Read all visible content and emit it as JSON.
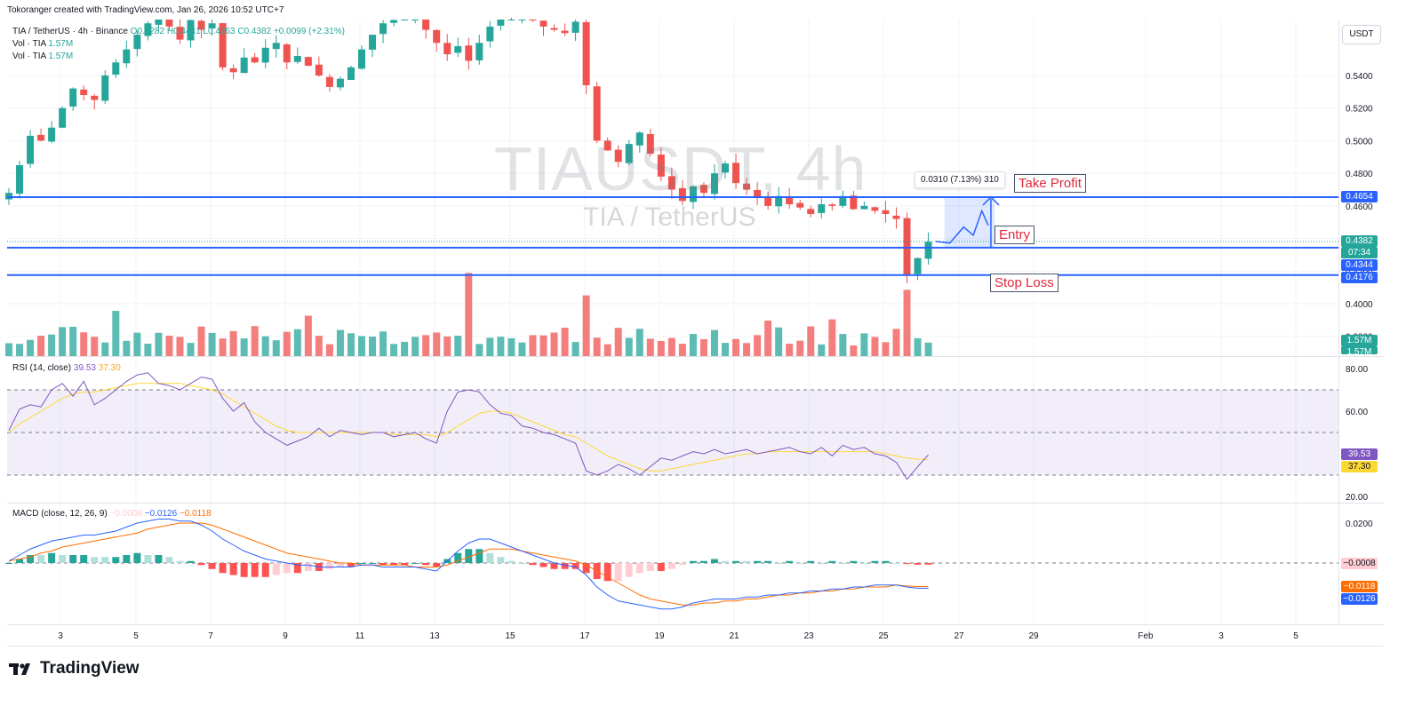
{
  "header": {
    "attribution": "Tokoranger created with TradingView.com, Jan 26, 2026 10:52 UTC+7"
  },
  "legend": {
    "symbol": "TIA / TetherUS · 4h · Binance",
    "open": "O0.4282",
    "high": "H0.4441",
    "low": "L0.4263",
    "close": "C0.4382",
    "change": "+0.0099 (+2.31%)",
    "vol1": "Vol · TIA",
    "vol1_val": "1.57M",
    "vol2": "Vol · TIA",
    "vol2_val": "1.57M"
  },
  "watermark": {
    "ticker": "TIAUSDT, 4h",
    "name": "TIA / TetherUS"
  },
  "currency_button": "USDT",
  "annotations": {
    "take_profit": "Take Profit",
    "entry": "Entry",
    "stop_loss": "Stop Loss",
    "measure": "0.0310 (7.13%) 310"
  },
  "price_tags": {
    "take_profit": "0.4654",
    "last_price": "0.4382",
    "countdown": "07:34",
    "entry": "0.4344",
    "stop_loss": "0.4176",
    "volume1": "1.57M",
    "volume2": "1.57M",
    "rsi": "39.53",
    "rsi_ma": "37.30",
    "macd_hist": "−0.0008",
    "macd_signal": "−0.0118",
    "macd_line": "−0.0126"
  },
  "colors": {
    "up": "#26a69a",
    "down": "#ef5350",
    "level_line": "#2962ff",
    "rsi": "#7e57c2",
    "rsi_ma": "#fdd835",
    "macd": "#2962ff",
    "signal": "#ff6d00",
    "hist_pos_strong": "#26a69a",
    "hist_pos_weak": "#b2dfdb",
    "hist_neg_strong": "#ff5252",
    "hist_neg_weak": "#ffcdd2"
  },
  "rsi": {
    "title": "RSI (14, close)",
    "value": "39.53",
    "ma_value": "37.30"
  },
  "macd": {
    "title": "MACD (close, 12, 26, 9)",
    "hist": "−0.0008",
    "macd": "−0.0126",
    "signal": "−0.0118"
  },
  "branding": {
    "logo_text": "TradingView",
    "logo_icon": "tradingview-logo-icon"
  },
  "chart_data": [
    {
      "type": "candlestick",
      "title": "TIA / TetherUS · 4h · Binance",
      "y_ticks": [
        "0.5400",
        "0.5200",
        "0.5000",
        "0.4800",
        "0.4600",
        "0.4400",
        "0.4200",
        "0.4000",
        "0.3800"
      ],
      "ylim": [
        0.372,
        0.577
      ],
      "x_ticks": [
        "3",
        "5",
        "7",
        "9",
        "11",
        "13",
        "15",
        "17",
        "19",
        "21",
        "23",
        "25",
        "27",
        "29",
        "Feb",
        "3",
        "5"
      ],
      "levels": {
        "take_profit": 0.4654,
        "entry": 0.4344,
        "stop_loss": 0.4176
      },
      "last_candle": {
        "open": 0.4282,
        "high": 0.4441,
        "low": 0.4263,
        "close": 0.4382,
        "change": 0.0099,
        "change_pct": 2.31
      },
      "close_path": [
        0.468,
        0.485,
        0.503,
        0.5,
        0.508,
        0.52,
        0.532,
        0.528,
        0.525,
        0.54,
        0.548,
        0.556,
        0.565,
        0.572,
        0.577,
        0.57,
        0.562,
        0.574,
        0.568,
        0.572,
        0.545,
        0.542,
        0.551,
        0.548,
        0.557,
        0.56,
        0.548,
        0.552,
        0.546,
        0.54,
        0.533,
        0.538,
        0.545,
        0.556,
        0.565,
        0.572,
        0.574,
        0.576,
        0.577,
        0.568,
        0.56,
        0.553,
        0.558,
        0.549,
        0.56,
        0.57,
        0.575,
        0.576,
        0.577,
        0.574,
        0.57,
        0.568,
        0.566,
        0.573,
        0.534,
        0.5,
        0.494,
        0.487,
        0.498,
        0.505,
        0.492,
        0.478,
        0.47,
        0.463,
        0.472,
        0.468,
        0.48,
        0.486,
        0.474,
        0.47,
        0.465,
        0.46,
        0.466,
        0.461,
        0.459,
        0.455,
        0.461,
        0.46,
        0.466,
        0.458,
        0.46,
        0.457,
        0.455,
        0.452,
        0.418,
        0.428,
        0.438
      ],
      "volume_label": "Vol · TIA 1.57M"
    },
    {
      "type": "line",
      "title": "RSI (14, close)",
      "y_ticks": [
        "80.00",
        "60.00",
        "20.00"
      ],
      "ylim": [
        16,
        84
      ],
      "bands": {
        "upper": 70,
        "middle": 50,
        "lower": 30
      },
      "series": [
        {
          "name": "RSI",
          "values": [
            51,
            61,
            63,
            62,
            70,
            73,
            67,
            74,
            63,
            66,
            70,
            74,
            77,
            78,
            73,
            72,
            70,
            73,
            76,
            75,
            66,
            60,
            64,
            55,
            50,
            47,
            44,
            46,
            48,
            52,
            48,
            51,
            50,
            49,
            50,
            50,
            48,
            49,
            50,
            47,
            45,
            60,
            69,
            70,
            69,
            63,
            59,
            58,
            53,
            52,
            50,
            49,
            47,
            45,
            32,
            30,
            32,
            35,
            33,
            30,
            34,
            38,
            37,
            39,
            41,
            40,
            42,
            40,
            41,
            42,
            40,
            41,
            42,
            43,
            41,
            40,
            43,
            39,
            44,
            42,
            43,
            40,
            39,
            36,
            28,
            34,
            39.53
          ]
        },
        {
          "name": "RSI-based MA",
          "values": [
            50,
            54,
            57,
            60,
            63,
            66,
            68,
            69,
            69,
            70,
            71,
            72,
            73,
            73,
            73,
            73,
            73,
            72,
            71,
            70,
            68,
            65,
            62,
            59,
            56,
            53,
            51,
            50,
            50,
            50,
            50,
            50,
            50,
            50,
            50,
            50,
            49,
            49,
            49,
            49,
            48,
            50,
            53,
            56,
            59,
            60,
            60,
            59,
            57,
            55,
            53,
            51,
            49,
            48,
            45,
            42,
            39,
            37,
            35,
            33,
            32,
            32,
            33,
            34,
            35,
            36,
            37,
            38,
            39,
            40,
            40,
            41,
            41,
            41,
            41,
            41,
            41,
            41,
            41,
            41,
            41,
            41,
            40,
            39,
            38,
            37.5,
            37.3
          ]
        }
      ]
    },
    {
      "type": "line",
      "title": "MACD (close, 12, 26, 9)",
      "y_ticks": [
        "0.0200"
      ],
      "ylim": [
        -0.025,
        0.024
      ],
      "series": [
        {
          "name": "MACD",
          "values": [
            0.001,
            0.004,
            0.007,
            0.009,
            0.011,
            0.012,
            0.013,
            0.014,
            0.014,
            0.015,
            0.016,
            0.018,
            0.02,
            0.021,
            0.022,
            0.022,
            0.021,
            0.021,
            0.019,
            0.016,
            0.012,
            0.009,
            0.006,
            0.004,
            0.002,
            0.001,
            0.0,
            -0.001,
            -0.001,
            -0.002,
            -0.002,
            -0.002,
            -0.002,
            -0.001,
            -0.001,
            -0.002,
            -0.002,
            -0.002,
            -0.002,
            -0.003,
            -0.004,
            0.001,
            0.006,
            0.01,
            0.012,
            0.012,
            0.01,
            0.008,
            0.006,
            0.004,
            0.002,
            0.0,
            -0.001,
            -0.002,
            -0.006,
            -0.012,
            -0.016,
            -0.019,
            -0.02,
            -0.021,
            -0.022,
            -0.023,
            -0.023,
            -0.022,
            -0.02,
            -0.019,
            -0.018,
            -0.018,
            -0.018,
            -0.017,
            -0.017,
            -0.016,
            -0.016,
            -0.015,
            -0.015,
            -0.014,
            -0.014,
            -0.013,
            -0.013,
            -0.012,
            -0.012,
            -0.011,
            -0.011,
            -0.011,
            -0.012,
            -0.0126,
            -0.0126
          ]
        },
        {
          "name": "Signal",
          "values": [
            0.001,
            0.002,
            0.003,
            0.005,
            0.006,
            0.008,
            0.009,
            0.01,
            0.011,
            0.012,
            0.013,
            0.014,
            0.015,
            0.017,
            0.018,
            0.019,
            0.02,
            0.02,
            0.02,
            0.019,
            0.017,
            0.015,
            0.013,
            0.011,
            0.009,
            0.007,
            0.005,
            0.004,
            0.003,
            0.002,
            0.001,
            0.0,
            0.0,
            -0.001,
            -0.001,
            -0.001,
            -0.001,
            -0.001,
            -0.002,
            -0.002,
            -0.002,
            -0.001,
            0.001,
            0.003,
            0.005,
            0.007,
            0.007,
            0.007,
            0.006,
            0.005,
            0.004,
            0.003,
            0.002,
            0.001,
            -0.001,
            -0.004,
            -0.007,
            -0.01,
            -0.013,
            -0.016,
            -0.018,
            -0.019,
            -0.02,
            -0.021,
            -0.021,
            -0.02,
            -0.02,
            -0.019,
            -0.019,
            -0.018,
            -0.018,
            -0.017,
            -0.016,
            -0.016,
            -0.015,
            -0.015,
            -0.014,
            -0.014,
            -0.013,
            -0.013,
            -0.012,
            -0.012,
            -0.012,
            -0.011,
            -0.0115,
            -0.0118,
            -0.0118
          ]
        }
      ]
    }
  ]
}
